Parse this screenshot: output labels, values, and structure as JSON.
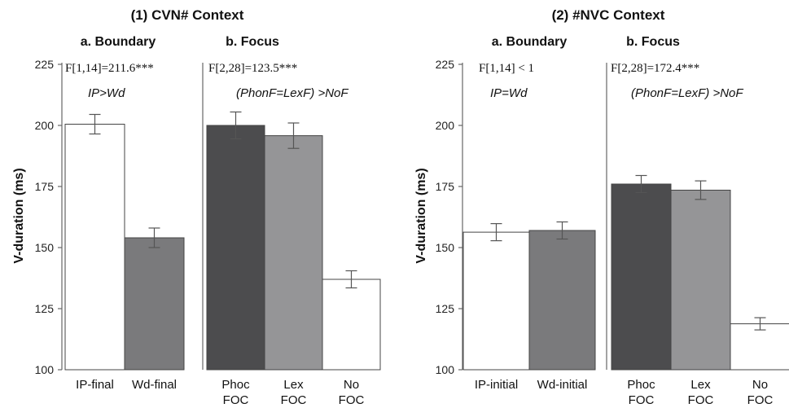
{
  "chart_data": [
    {
      "type": "bar",
      "group_title": "(1) CVN# Context",
      "title": "a. Boundary",
      "ylabel": "V-duration (ms)",
      "ylim": [
        100,
        225
      ],
      "yticks": [
        100,
        125,
        150,
        175,
        200,
        225
      ],
      "stat": "F[1,14]=211.6***",
      "comparison": "IP>Wd",
      "categories": [
        [
          "IP-final"
        ],
        [
          "Wd-final"
        ]
      ],
      "values": [
        200.5,
        154
      ],
      "errors": [
        4,
        4
      ],
      "colors": [
        "#ffffff",
        "#7a7a7c"
      ]
    },
    {
      "type": "bar",
      "title": "b. Focus",
      "ylim": [
        100,
        225
      ],
      "stat": "F[2,28]=123.5***",
      "comparison": "(PhonF=LexF) >NoF",
      "categories": [
        [
          "Phoc",
          "FOC"
        ],
        [
          "Lex",
          "FOC"
        ],
        [
          "No",
          "FOC"
        ]
      ],
      "values": [
        200,
        195.8,
        137
      ],
      "errors": [
        5.5,
        5.2,
        3.5
      ],
      "colors": [
        "#4c4c4e",
        "#959597",
        "#ffffff"
      ]
    },
    {
      "type": "bar",
      "group_title": "(2) #NVC Context",
      "title": "a. Boundary",
      "ylabel": "V-duration (ms)",
      "ylim": [
        100,
        225
      ],
      "yticks": [
        100,
        125,
        150,
        175,
        200,
        225
      ],
      "stat": "F[1,14] < 1",
      "comparison": "IP=Wd",
      "categories": [
        [
          "IP-initial"
        ],
        [
          "Wd-initial"
        ]
      ],
      "values": [
        156.3,
        157
      ],
      "errors": [
        3.5,
        3.5
      ],
      "colors": [
        "#ffffff",
        "#7a7a7c"
      ]
    },
    {
      "type": "bar",
      "title": "b. Focus",
      "ylim": [
        100,
        225
      ],
      "stat": "F[2,28]=172.4***",
      "comparison": "(PhonF=LexF) >NoF",
      "categories": [
        [
          "Phoc",
          "FOC"
        ],
        [
          "Lex",
          "FOC"
        ],
        [
          "No",
          "FOC"
        ]
      ],
      "values": [
        176,
        173.5,
        118.8
      ],
      "errors": [
        3.5,
        3.8,
        2.5
      ],
      "colors": [
        "#4c4c4e",
        "#959597",
        "#ffffff"
      ]
    }
  ]
}
